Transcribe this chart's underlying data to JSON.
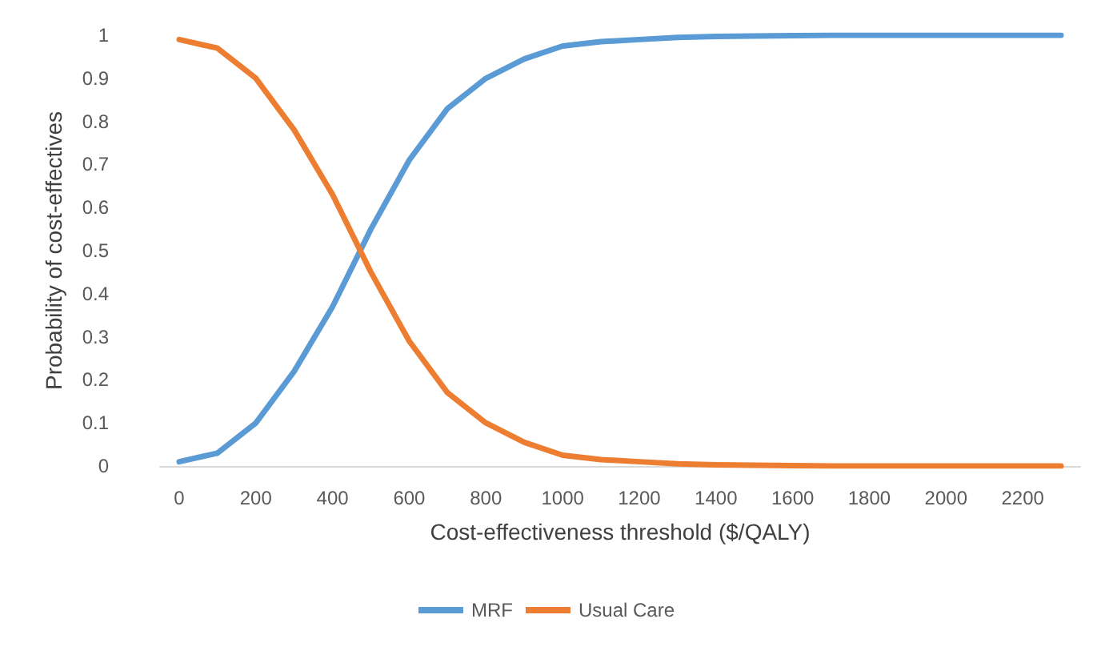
{
  "chart_data": {
    "type": "line",
    "xlabel": "Cost-effectiveness threshold ($/QALY)",
    "ylabel": "Probability of cost-effectives",
    "categories": [
      "0",
      null,
      "200",
      null,
      "400",
      null,
      "600",
      null,
      "800",
      null,
      "1000",
      null,
      "1200",
      null,
      "1400",
      null,
      "1600",
      null,
      "1800",
      null,
      "2000",
      null,
      "2200",
      null
    ],
    "series": [
      {
        "name": "MRF",
        "color": "#5b9bd5",
        "values": [
          0.01,
          0.03,
          0.1,
          0.22,
          0.37,
          0.55,
          0.71,
          0.83,
          0.9,
          0.945,
          0.975,
          0.985,
          0.99,
          0.995,
          0.997,
          0.998,
          0.999,
          1,
          1,
          1,
          1,
          1,
          1,
          1
        ]
      },
      {
        "name": "Usual Care",
        "color": "#ed7d31",
        "values": [
          0.99,
          0.97,
          0.9,
          0.78,
          0.63,
          0.45,
          0.29,
          0.17,
          0.1,
          0.055,
          0.025,
          0.015,
          0.01,
          0.005,
          0.003,
          0.002,
          0.001,
          0,
          0,
          0,
          0,
          0,
          0,
          0
        ]
      }
    ],
    "ylim": [
      0,
      1
    ],
    "yticks": [
      0,
      0.1,
      0.2,
      0.3,
      0.4,
      0.5,
      0.6,
      0.7,
      0.8,
      0.9,
      1
    ],
    "grid": false,
    "legend": "bottom",
    "marker": "none",
    "line_style": "solid"
  }
}
